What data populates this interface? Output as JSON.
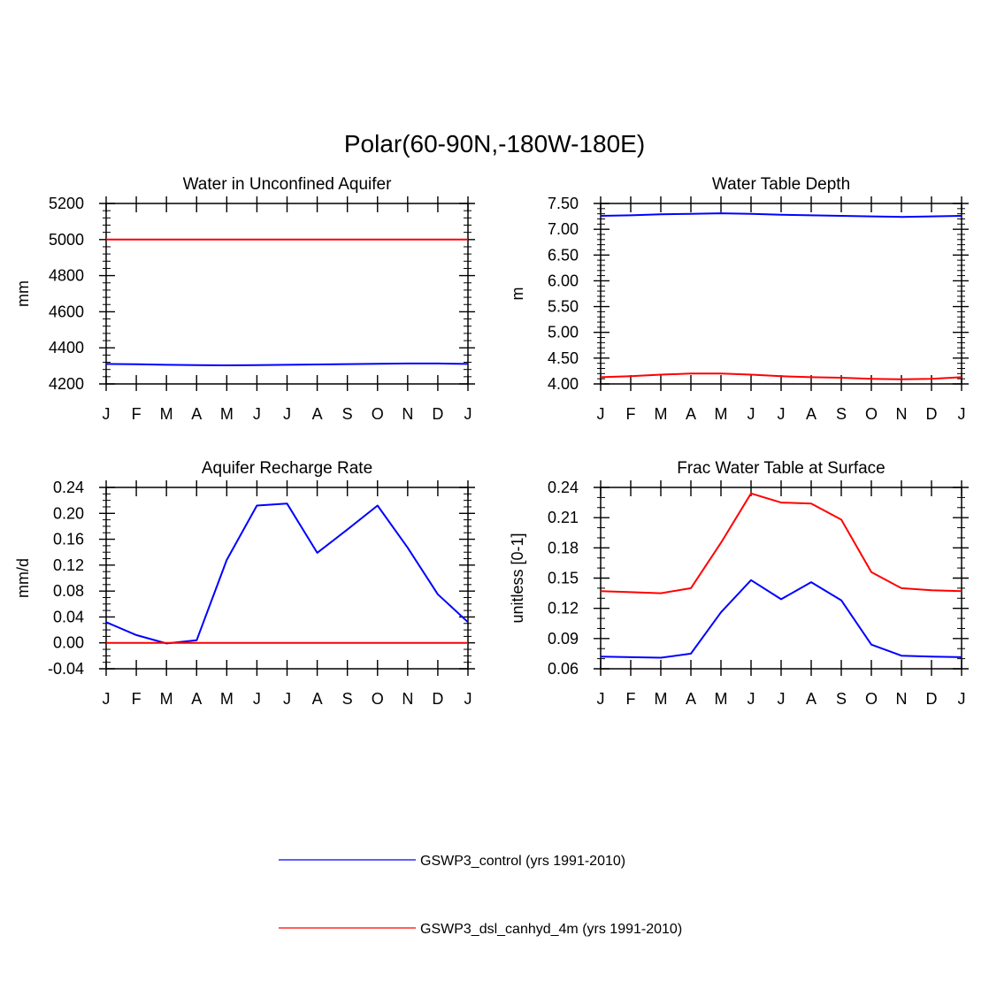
{
  "figure": {
    "title": "Polar(60-90N,-180W-180E)",
    "series_colors": [
      "#0000ff",
      "#ff0000"
    ]
  },
  "legend": [
    {
      "label": "GSWP3_control (yrs 1991-2010)",
      "color": "#0000ff"
    },
    {
      "label": "GSWP3_dsl_canhyd_4m (yrs 1991-2010)",
      "color": "#ff0000"
    }
  ],
  "chart_data": [
    {
      "type": "line",
      "title": "Water in Unconfined Aquifer",
      "xlabel": "",
      "ylabel": "mm",
      "categories": [
        "J",
        "F",
        "M",
        "A",
        "M",
        "J",
        "J",
        "A",
        "S",
        "O",
        "N",
        "D",
        "J"
      ],
      "ylim": [
        4200,
        5200
      ],
      "yticks": [
        4200,
        4400,
        4600,
        4800,
        5000,
        5200
      ],
      "ytick_labels": [
        "4200",
        "4400",
        "4600",
        "4800",
        "5000",
        "5200"
      ],
      "yminor": 5,
      "series": [
        {
          "name": "GSWP3_control (yrs 1991-2010)",
          "values": [
            4311,
            4309,
            4306,
            4304,
            4303,
            4304,
            4306,
            4308,
            4310,
            4312,
            4313,
            4313,
            4311
          ]
        },
        {
          "name": "GSWP3_dsl_canhyd_4m (yrs 1991-2010)",
          "values": [
            5000,
            5000,
            5000,
            5000,
            5000,
            5000,
            5000,
            5000,
            5000,
            5000,
            5000,
            5000,
            5000
          ]
        }
      ]
    },
    {
      "type": "line",
      "title": "Water Table Depth",
      "xlabel": "",
      "ylabel": "m",
      "categories": [
        "J",
        "F",
        "M",
        "A",
        "M",
        "J",
        "J",
        "A",
        "S",
        "O",
        "N",
        "D",
        "J"
      ],
      "ylim": [
        4.0,
        7.5
      ],
      "yticks": [
        4.0,
        4.5,
        5.0,
        5.5,
        6.0,
        6.5,
        7.0,
        7.5
      ],
      "ytick_labels": [
        "4.00",
        "4.50",
        "5.00",
        "5.50",
        "6.00",
        "6.50",
        "7.00",
        "7.50"
      ],
      "yminor": 5,
      "series": [
        {
          "name": "GSWP3_control (yrs 1991-2010)",
          "values": [
            7.26,
            7.27,
            7.29,
            7.3,
            7.31,
            7.3,
            7.28,
            7.27,
            7.26,
            7.25,
            7.24,
            7.25,
            7.26
          ]
        },
        {
          "name": "GSWP3_dsl_canhyd_4m (yrs 1991-2010)",
          "values": [
            4.13,
            4.15,
            4.18,
            4.2,
            4.2,
            4.18,
            4.15,
            4.13,
            4.12,
            4.1,
            4.09,
            4.1,
            4.13
          ]
        }
      ]
    },
    {
      "type": "line",
      "title": "Aquifer Recharge Rate",
      "xlabel": "",
      "ylabel": "mm/d",
      "categories": [
        "J",
        "F",
        "M",
        "A",
        "M",
        "J",
        "J",
        "A",
        "S",
        "O",
        "N",
        "D",
        "J"
      ],
      "ylim": [
        -0.04,
        0.24
      ],
      "yticks": [
        -0.04,
        0.0,
        0.04,
        0.08,
        0.12,
        0.16,
        0.2,
        0.24
      ],
      "ytick_labels": [
        "-0.04",
        "0.00",
        "0.04",
        "0.08",
        "0.12",
        "0.16",
        "0.20",
        "0.24"
      ],
      "yminor": 4,
      "series": [
        {
          "name": "GSWP3_control (yrs 1991-2010)",
          "values": [
            0.032,
            0.012,
            -0.001,
            0.004,
            0.128,
            0.212,
            0.215,
            0.139,
            0.175,
            0.212,
            0.147,
            0.075,
            0.032
          ]
        },
        {
          "name": "GSWP3_dsl_canhyd_4m (yrs 1991-2010)",
          "values": [
            0.0,
            0.0,
            0.0,
            0.0,
            0.0,
            0.0,
            0.0,
            0.0,
            0.0,
            0.0,
            0.0,
            0.0,
            0.0
          ]
        }
      ]
    },
    {
      "type": "line",
      "title": "Frac Water Table at Surface",
      "xlabel": "",
      "ylabel": "unitless [0-1]",
      "categories": [
        "J",
        "F",
        "M",
        "A",
        "M",
        "J",
        "J",
        "A",
        "S",
        "O",
        "N",
        "D",
        "J"
      ],
      "ylim": [
        0.06,
        0.24
      ],
      "yticks": [
        0.06,
        0.09,
        0.12,
        0.15,
        0.18,
        0.21,
        0.24
      ],
      "ytick_labels": [
        "0.06",
        "0.09",
        "0.12",
        "0.15",
        "0.18",
        "0.21",
        "0.24"
      ],
      "yminor": 3,
      "series": [
        {
          "name": "GSWP3_control (yrs 1991-2010)",
          "values": [
            0.072,
            0.0715,
            0.071,
            0.075,
            0.116,
            0.148,
            0.129,
            0.146,
            0.128,
            0.084,
            0.073,
            0.072,
            0.0715
          ]
        },
        {
          "name": "GSWP3_dsl_canhyd_4m (yrs 1991-2010)",
          "values": [
            0.137,
            0.136,
            0.135,
            0.14,
            0.185,
            0.234,
            0.225,
            0.224,
            0.208,
            0.156,
            0.14,
            0.138,
            0.137
          ]
        }
      ]
    }
  ]
}
